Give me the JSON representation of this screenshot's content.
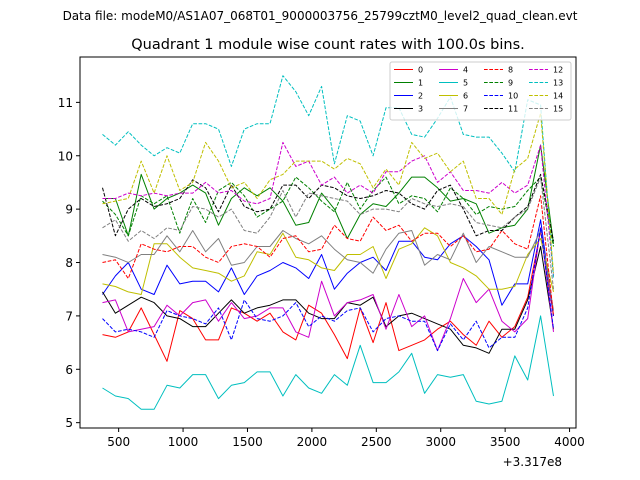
{
  "header": {
    "data_file": "Data file: modeM0/AS1A07_068T01_9000003756_25799cztM0_level2_quad_clean.evt"
  },
  "chart_data": {
    "type": "line",
    "title": "Quadrant 1 module wise count rates with 100.0s bins.",
    "xlabel": "",
    "ylabel": "",
    "x_offset_label": "+3.317e8",
    "xlim": [
      200,
      4050
    ],
    "ylim": [
      4.9,
      11.85
    ],
    "xticks": [
      500,
      1000,
      1500,
      2000,
      2500,
      3000,
      3500,
      4000
    ],
    "yticks": [
      5,
      6,
      7,
      8,
      9,
      10,
      11
    ],
    "grid": true,
    "legend_position": "top-right",
    "x": [
      375,
      475,
      575,
      675,
      775,
      875,
      975,
      1075,
      1175,
      1275,
      1375,
      1475,
      1575,
      1675,
      1775,
      1875,
      1975,
      2075,
      2175,
      2275,
      2375,
      2475,
      2575,
      2675,
      2775,
      2875,
      2975,
      3075,
      3175,
      3275,
      3375,
      3475,
      3575,
      3675,
      3775,
      3875
    ],
    "series": [
      {
        "name": "0",
        "color": "#ff0000",
        "dash": "solid",
        "values": [
          6.65,
          6.6,
          6.7,
          7.15,
          6.65,
          6.15,
          7.1,
          6.95,
          6.55,
          6.55,
          7.15,
          7.05,
          6.9,
          7.05,
          6.7,
          6.55,
          7.2,
          7.05,
          6.65,
          6.2,
          7.15,
          6.5,
          7.25,
          6.35,
          6.45,
          6.55,
          6.75,
          6.9,
          6.65,
          6.45,
          6.9,
          6.6,
          6.8,
          7.35,
          8.6,
          7.0
        ]
      },
      {
        "name": "1",
        "color": "#008000",
        "dash": "solid",
        "values": [
          9.2,
          9.2,
          8.5,
          9.65,
          9.0,
          9.2,
          9.3,
          9.45,
          9.3,
          8.7,
          9.2,
          9.4,
          9.25,
          9.4,
          9.15,
          8.7,
          8.75,
          9.3,
          9.0,
          8.45,
          8.9,
          9.1,
          9.05,
          9.3,
          9.6,
          9.6,
          9.4,
          9.15,
          9.2,
          9.1,
          8.55,
          8.65,
          8.7,
          9.0,
          10.2,
          8.35
        ]
      },
      {
        "name": "2",
        "color": "#0000ff",
        "dash": "solid",
        "values": [
          7.4,
          7.75,
          8.0,
          7.5,
          7.4,
          7.95,
          7.6,
          7.65,
          7.65,
          7.45,
          7.9,
          7.4,
          7.75,
          7.85,
          8.0,
          7.9,
          7.7,
          8.15,
          7.5,
          7.8,
          8.0,
          8.1,
          7.85,
          8.4,
          8.4,
          8.1,
          8.05,
          8.35,
          8.5,
          8.3,
          8.05,
          7.2,
          7.6,
          7.6,
          8.8,
          7.0
        ]
      },
      {
        "name": "3",
        "color": "#000000",
        "dash": "solid",
        "values": [
          7.45,
          7.05,
          7.2,
          7.35,
          7.25,
          7.0,
          6.95,
          6.8,
          6.8,
          7.05,
          7.3,
          7.05,
          7.15,
          7.2,
          7.3,
          7.3,
          7.05,
          6.95,
          6.95,
          7.25,
          7.2,
          7.35,
          6.8,
          7.0,
          7.05,
          6.95,
          6.85,
          6.75,
          6.45,
          6.4,
          6.3,
          6.75,
          6.75,
          7.3,
          8.3,
          6.75
        ]
      },
      {
        "name": "4",
        "color": "#cc00cc",
        "dash": "solid",
        "values": [
          7.25,
          7.3,
          6.7,
          6.75,
          6.8,
          7.2,
          7.0,
          7.25,
          7.3,
          6.9,
          7.25,
          6.95,
          7.0,
          7.15,
          7.15,
          6.7,
          6.6,
          7.65,
          7.0,
          7.25,
          7.3,
          7.4,
          6.75,
          7.4,
          6.8,
          7.0,
          6.35,
          6.95,
          7.7,
          7.25,
          7.5,
          6.9,
          6.7,
          6.95,
          8.65,
          6.7
        ]
      },
      {
        "name": "5",
        "color": "#00bfbf",
        "dash": "solid",
        "values": [
          5.65,
          5.5,
          5.45,
          5.25,
          5.25,
          5.7,
          5.65,
          5.9,
          5.9,
          5.45,
          5.7,
          5.75,
          5.95,
          5.95,
          5.5,
          5.9,
          5.65,
          5.55,
          5.9,
          5.7,
          6.45,
          5.75,
          5.75,
          5.95,
          6.3,
          5.55,
          5.9,
          5.85,
          5.9,
          5.4,
          5.35,
          5.4,
          6.25,
          5.8,
          7.0,
          5.5
        ]
      },
      {
        "name": "6",
        "color": "#bfbf00",
        "dash": "solid",
        "values": [
          7.6,
          7.55,
          7.45,
          7.4,
          8.35,
          8.35,
          8.1,
          7.9,
          7.85,
          7.8,
          7.65,
          7.75,
          8.2,
          8.15,
          8.55,
          8.1,
          8.05,
          7.9,
          7.85,
          8.15,
          8.15,
          8.3,
          7.7,
          8.25,
          8.35,
          8.65,
          8.5,
          8.0,
          7.9,
          7.75,
          7.5,
          7.5,
          7.55,
          8.15,
          8.45,
          7.45
        ]
      },
      {
        "name": "7",
        "color": "#808080",
        "dash": "solid",
        "values": [
          8.15,
          8.1,
          8.0,
          8.15,
          8.15,
          8.5,
          8.2,
          8.6,
          8.2,
          8.45,
          7.95,
          8.0,
          8.3,
          8.3,
          8.6,
          8.45,
          8.35,
          8.5,
          8.25,
          8.05,
          8.0,
          7.8,
          8.25,
          8.55,
          8.6,
          7.95,
          8.15,
          8.05,
          8.55,
          8.0,
          8.3,
          8.2,
          8.1,
          8.1,
          8.6,
          7.1
        ]
      },
      {
        "name": "8",
        "color": "#ff0000",
        "dash": "dashed",
        "values": [
          8.0,
          8.05,
          7.7,
          8.35,
          8.25,
          8.2,
          8.3,
          8.3,
          8.1,
          8.0,
          8.3,
          8.35,
          8.3,
          8.1,
          8.45,
          8.5,
          8.2,
          8.25,
          8.7,
          8.45,
          8.4,
          8.85,
          8.6,
          8.7,
          8.4,
          8.55,
          8.55,
          8.3,
          8.5,
          8.2,
          8.25,
          8.6,
          8.35,
          8.25,
          9.25,
          7.0
        ]
      },
      {
        "name": "9",
        "color": "#008000",
        "dash": "dashed",
        "values": [
          9.15,
          8.9,
          8.5,
          9.25,
          9.1,
          9.25,
          8.55,
          9.2,
          8.75,
          9.35,
          9.5,
          9.25,
          8.85,
          9.0,
          9.15,
          9.6,
          9.4,
          9.15,
          8.95,
          9.5,
          9.0,
          9.35,
          9.6,
          9.1,
          9.25,
          9.2,
          8.95,
          9.4,
          9.2,
          8.9,
          9.05,
          9.0,
          9.05,
          9.35,
          9.6,
          8.3
        ]
      },
      {
        "name": "10",
        "color": "#0000ff",
        "dash": "dashed",
        "values": [
          6.95,
          6.7,
          6.75,
          6.7,
          6.6,
          7.1,
          7.0,
          6.95,
          6.85,
          7.15,
          6.55,
          7.3,
          6.95,
          6.9,
          7.0,
          7.25,
          6.8,
          7.0,
          6.9,
          7.1,
          7.15,
          6.7,
          6.95,
          7.0,
          6.9,
          6.9,
          6.35,
          6.85,
          6.55,
          6.9,
          6.4,
          6.6,
          6.6,
          7.15,
          8.65,
          6.75
        ]
      },
      {
        "name": "11",
        "color": "#000000",
        "dash": "dashed",
        "values": [
          9.4,
          8.5,
          9.0,
          9.2,
          9.05,
          9.1,
          9.2,
          9.55,
          9.4,
          8.95,
          9.45,
          9.05,
          8.95,
          9.0,
          9.45,
          9.45,
          9.2,
          9.45,
          9.4,
          9.25,
          9.2,
          9.25,
          9.35,
          9.3,
          9.1,
          9.0,
          9.35,
          9.45,
          9.0,
          8.5,
          8.6,
          8.6,
          8.85,
          9.05,
          9.65,
          8.4
        ]
      },
      {
        "name": "12",
        "color": "#cc00cc",
        "dash": "dashed",
        "values": [
          9.2,
          9.2,
          9.3,
          9.25,
          9.3,
          9.25,
          9.3,
          9.3,
          9.5,
          9.3,
          9.35,
          9.15,
          9.1,
          9.2,
          10.25,
          9.8,
          9.9,
          9.45,
          9.6,
          9.3,
          9.45,
          9.3,
          9.7,
          9.7,
          9.9,
          10.0,
          9.5,
          9.7,
          9.35,
          9.35,
          9.3,
          9.5,
          9.3,
          9.45,
          10.2,
          7.75
        ]
      },
      {
        "name": "13",
        "color": "#00bfbf",
        "dash": "dashed",
        "values": [
          10.4,
          10.2,
          10.45,
          10.2,
          10.0,
          10.15,
          10.05,
          10.6,
          10.6,
          10.5,
          9.8,
          10.5,
          10.6,
          10.6,
          11.5,
          11.2,
          10.75,
          11.3,
          9.85,
          10.75,
          10.65,
          10.0,
          10.9,
          10.9,
          10.4,
          10.35,
          10.7,
          11.1,
          10.4,
          10.35,
          10.35,
          10.05,
          9.7,
          11.05,
          10.95,
          7.7
        ]
      },
      {
        "name": "14",
        "color": "#bfbf00",
        "dash": "dashed",
        "values": [
          9.1,
          9.15,
          9.2,
          9.9,
          9.3,
          10.0,
          9.35,
          9.5,
          10.25,
          9.9,
          9.4,
          9.5,
          9.2,
          9.55,
          9.65,
          9.9,
          9.9,
          9.9,
          9.75,
          9.95,
          9.85,
          9.4,
          9.75,
          9.45,
          10.25,
          9.95,
          10.05,
          9.7,
          9.9,
          9.2,
          9.2,
          8.9,
          9.75,
          9.95,
          10.8,
          7.8
        ]
      },
      {
        "name": "15",
        "color": "#808080",
        "dash": "dashed",
        "values": [
          8.65,
          8.8,
          8.4,
          8.6,
          8.45,
          8.65,
          8.6,
          9.05,
          9.0,
          8.85,
          9.0,
          8.6,
          8.55,
          8.85,
          9.35,
          8.85,
          9.3,
          9.25,
          9.2,
          9.15,
          8.9,
          9.0,
          9.0,
          8.95,
          9.2,
          9.1,
          9.05,
          9.1,
          9.05,
          8.75,
          8.7,
          8.65,
          8.85,
          9.0,
          9.6,
          7.5
        ]
      }
    ]
  }
}
